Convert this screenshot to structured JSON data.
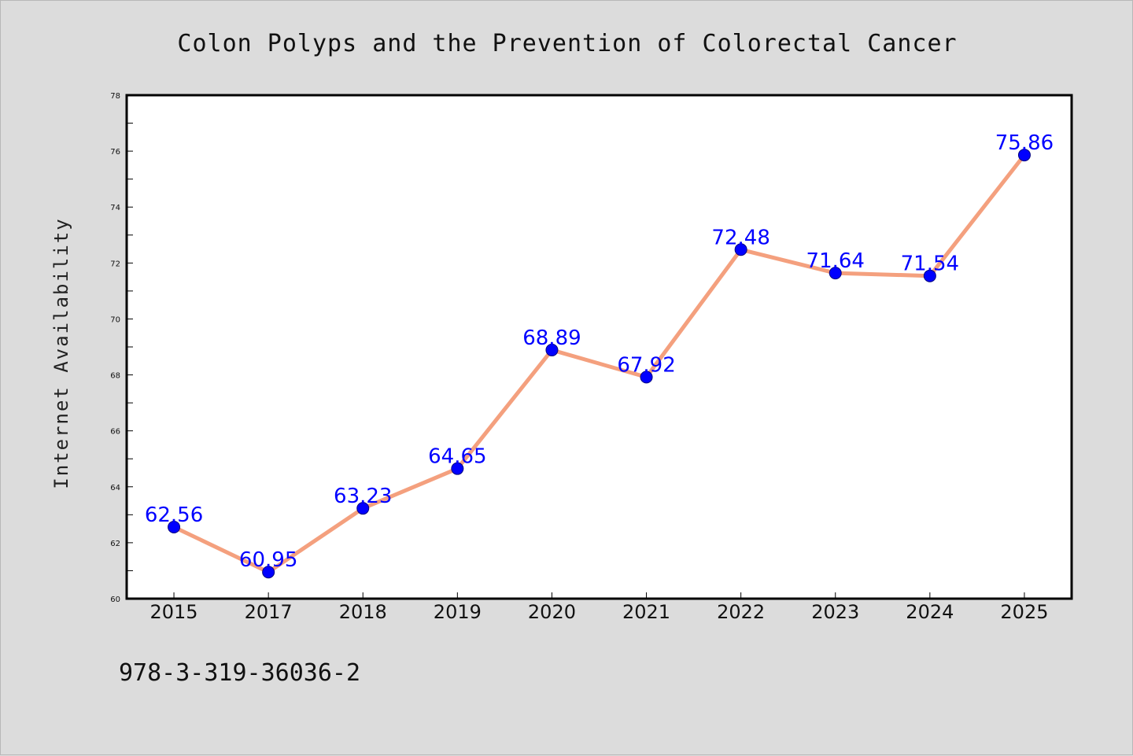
{
  "chart_data": {
    "type": "line",
    "title": "Colon Polyps and the Prevention of Colorectal Cancer",
    "xlabel": "",
    "ylabel": "Internet Availability",
    "categories": [
      "2015",
      "2017",
      "2018",
      "2019",
      "2020",
      "2021",
      "2022",
      "2023",
      "2024",
      "2025"
    ],
    "series": [
      {
        "values": [
          62.56,
          60.95,
          63.23,
          64.65,
          68.89,
          67.92,
          72.48,
          71.64,
          71.54,
          75.86
        ],
        "data_labels": [
          "62.56",
          "60.95",
          "63.23",
          "64.65",
          "68.89",
          "67.92",
          "72.48",
          "71.64",
          "71.54",
          "75.86"
        ]
      }
    ],
    "ylim": [
      60,
      78
    ],
    "yticks": [
      60,
      62,
      64,
      66,
      68,
      70,
      72,
      74,
      76,
      78
    ],
    "ytick_labels": [
      "60",
      "62",
      "64",
      "66",
      "68",
      "70",
      "72",
      "74",
      "76",
      "78"
    ],
    "grid": false,
    "legend": "none",
    "colors": {
      "line": "#f4a07e",
      "marker": "#0000ff",
      "marker_edge": "#000080",
      "data_label": "#0000ff",
      "plot_bg": "#ffffff",
      "figure_bg": "#dcdcdc"
    }
  },
  "footer": {
    "isbn": "978-3-319-36036-2"
  }
}
